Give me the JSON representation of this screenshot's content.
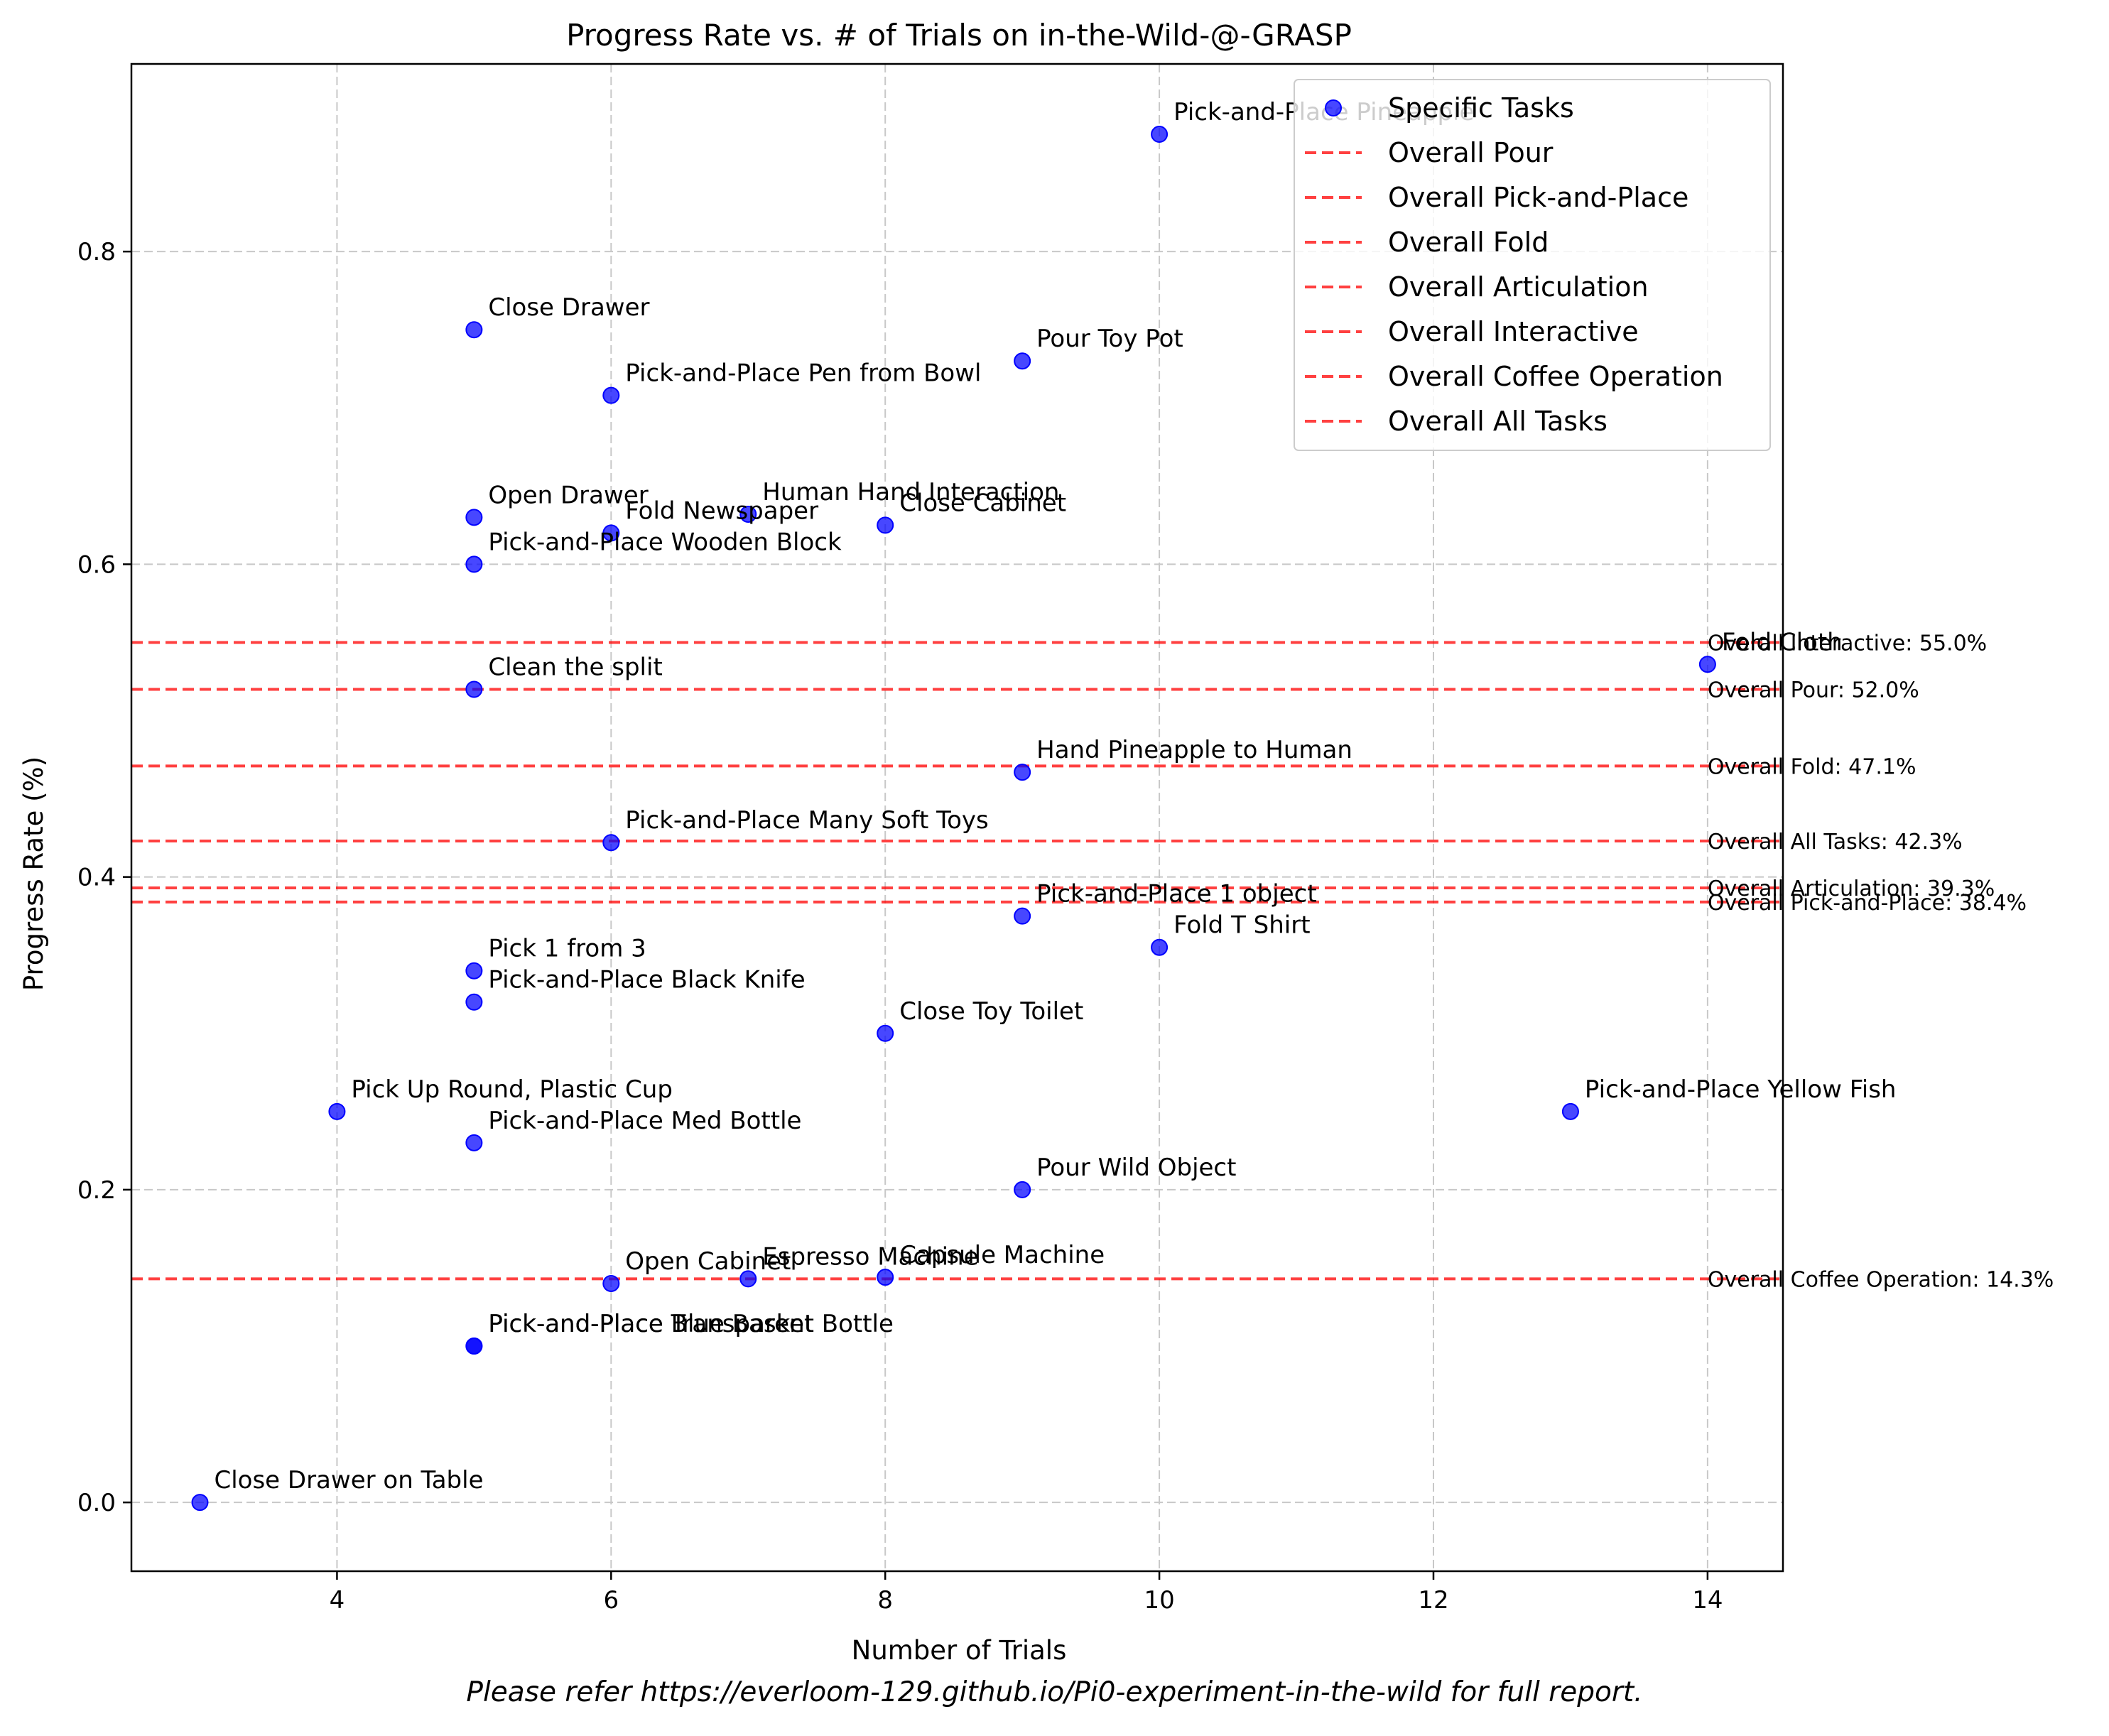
{
  "chart_data": {
    "type": "scatter",
    "title": "Progress Rate vs. # of Trials on in-the-Wild-@-GRASP",
    "xlabel": "Number of Trials",
    "ylabel": "Progress Rate (%)",
    "xlim": [
      2.5,
      14.55
    ],
    "ylim": [
      -0.044,
      0.92
    ],
    "xticks": [
      4,
      6,
      8,
      10,
      12,
      14
    ],
    "yticks": [
      0.0,
      0.2,
      0.4,
      0.6,
      0.8
    ],
    "xtick_labels": [
      "4",
      "6",
      "8",
      "10",
      "12",
      "14"
    ],
    "ytick_labels": [
      "0.0",
      "0.2",
      "0.4",
      "0.6",
      "0.8"
    ],
    "grid": true,
    "legend_position": "top-right",
    "series": [
      {
        "name": "Specific Tasks",
        "color": "#0000ff",
        "points": [
          {
            "label": "Pick-and-Place Pineapple",
            "x": 10,
            "y": 0.875
          },
          {
            "label": "Close Drawer",
            "x": 5,
            "y": 0.75
          },
          {
            "label": "Pour Toy Pot",
            "x": 9,
            "y": 0.73
          },
          {
            "label": "Pick-and-Place Pen from Bowl",
            "x": 6,
            "y": 0.708
          },
          {
            "label": "Open Drawer",
            "x": 5,
            "y": 0.63
          },
          {
            "label": "Human Hand Interaction",
            "x": 7,
            "y": 0.632
          },
          {
            "label": "Fold Newspaper",
            "x": 6,
            "y": 0.62
          },
          {
            "label": "Close Cabinet",
            "x": 8,
            "y": 0.625
          },
          {
            "label": "Pick-and-Place Wooden Block",
            "x": 5,
            "y": 0.6
          },
          {
            "label": "Fold Cloth",
            "x": 14,
            "y": 0.536
          },
          {
            "label": "Clean the split",
            "x": 5,
            "y": 0.52
          },
          {
            "label": "Hand Pineapple to Human",
            "x": 9,
            "y": 0.467
          },
          {
            "label": "Pick-and-Place Many Soft Toys",
            "x": 6,
            "y": 0.422
          },
          {
            "label": "Pick-and-Place 1 object",
            "x": 9,
            "y": 0.375
          },
          {
            "label": "Fold T Shirt",
            "x": 10,
            "y": 0.355
          },
          {
            "label": "Pick 1 from 3",
            "x": 5,
            "y": 0.34
          },
          {
            "label": "Pick-and-Place Black Knife",
            "x": 5,
            "y": 0.32
          },
          {
            "label": "Close Toy Toilet",
            "x": 8,
            "y": 0.3
          },
          {
            "label": "Pick Up Round, Plastic Cup",
            "x": 4,
            "y": 0.25
          },
          {
            "label": "Pick-and-Place Yellow Fish",
            "x": 13,
            "y": 0.25
          },
          {
            "label": "Pick-and-Place Med Bottle",
            "x": 5,
            "y": 0.23
          },
          {
            "label": "Pour Wild Object",
            "x": 9,
            "y": 0.2
          },
          {
            "label": "Open Cabinet",
            "x": 6,
            "y": 0.14
          },
          {
            "label": "Espresso Machine",
            "x": 7,
            "y": 0.143
          },
          {
            "label": "Capsule Machine",
            "x": 8,
            "y": 0.144
          },
          {
            "label": "Pick-and-Place Blue Basket",
            "x": 5,
            "y": 0.1
          },
          {
            "label": "Pick-and-Place Transparent Bottle",
            "x": 5,
            "y": 0.1
          },
          {
            "label": "Close Drawer on Table",
            "x": 3,
            "y": 0.0
          }
        ]
      }
    ],
    "reference_lines": [
      {
        "name": "Overall Pour",
        "y": 0.52,
        "annotation": "Overall Pour: 52.0%"
      },
      {
        "name": "Overall Pick-and-Place",
        "y": 0.384,
        "annotation": "Overall Pick-and-Place: 38.4%"
      },
      {
        "name": "Overall Fold",
        "y": 0.471,
        "annotation": "Overall Fold: 47.1%"
      },
      {
        "name": "Overall Articulation",
        "y": 0.393,
        "annotation": "Overall Articulation: 39.3%"
      },
      {
        "name": "Overall Interactive",
        "y": 0.55,
        "annotation": "Overall Interactive: 55.0%"
      },
      {
        "name": "Overall Coffee Operation",
        "y": 0.143,
        "annotation": "Overall Coffee Operation: 14.3%"
      },
      {
        "name": "Overall All Tasks",
        "y": 0.423,
        "annotation": "Overall All Tasks: 42.3%"
      }
    ],
    "reference_line_color": "#ff0000",
    "legend": [
      "Specific Tasks",
      "Overall Pour",
      "Overall Pick-and-Place",
      "Overall Fold",
      "Overall Articulation",
      "Overall Interactive",
      "Overall Coffee Operation",
      "Overall All Tasks"
    ]
  },
  "footnote": "Please refer https://everloom-129.github.io/Pi0-experiment-in-the-wild for full report."
}
